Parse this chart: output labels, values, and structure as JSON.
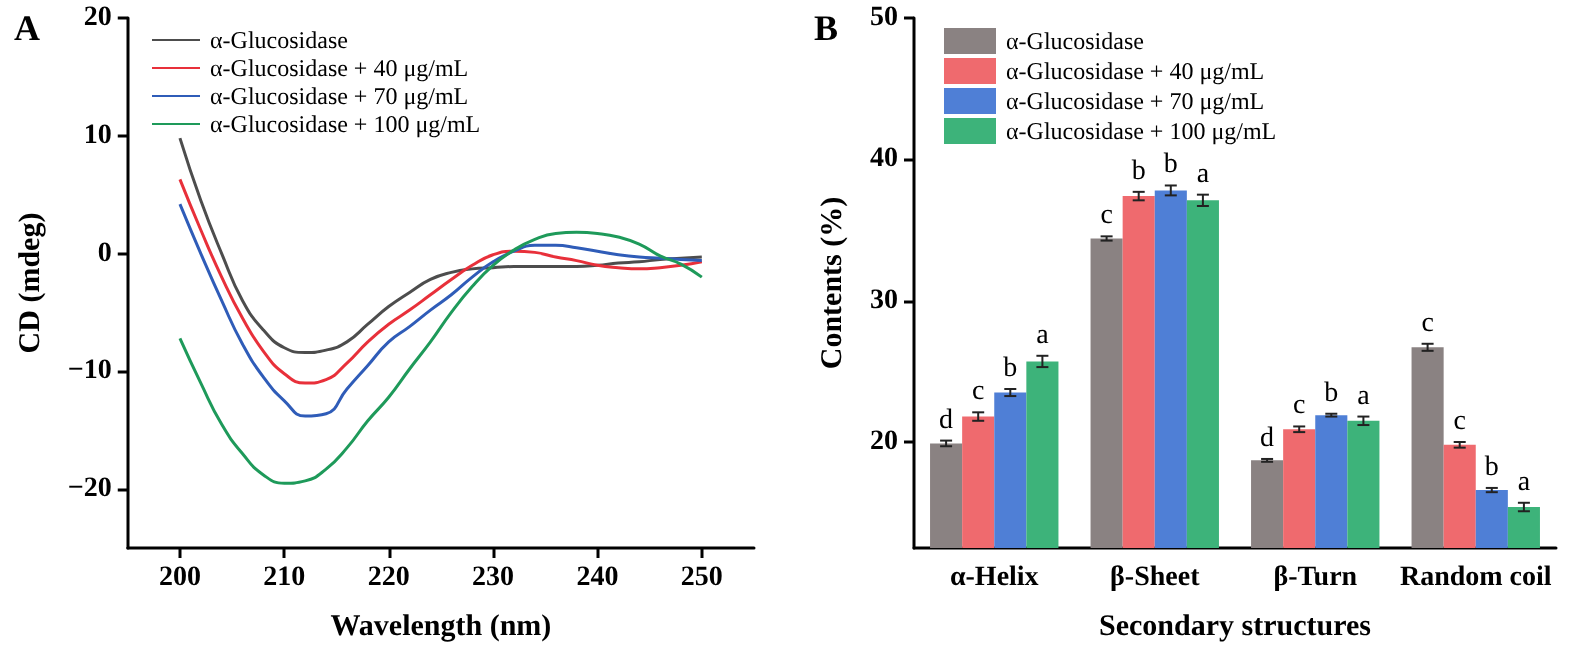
{
  "chart_data": [
    {
      "type": "line",
      "title": "A",
      "xlabel": "Wavelength (nm)",
      "ylabel": "CD (mdeg)",
      "xlim": [
        195,
        255
      ],
      "xticks": [
        200,
        210,
        220,
        230,
        240,
        250
      ],
      "ylim": [
        -25,
        20
      ],
      "yticks": [
        -20,
        -10,
        0,
        10,
        20
      ],
      "grid": false,
      "legend": "top left",
      "marker": "none",
      "line_style": "solid",
      "x": [
        200,
        202,
        204,
        206,
        208,
        210,
        212,
        214,
        216,
        218,
        220,
        222,
        224,
        226,
        228,
        230,
        232,
        234,
        236,
        238,
        240,
        242,
        244,
        246,
        248,
        250
      ],
      "series": [
        {
          "name": "α-Glucosidase",
          "color": "#4d4d4d",
          "values": [
            9.8,
            4.5,
            0,
            -4,
            -6.5,
            -8,
            -8.4,
            -8.2,
            -7.5,
            -6,
            -4.5,
            -3.3,
            -2.2,
            -1.6,
            -1.3,
            -1.2,
            -1.1,
            -1.1,
            -1.1,
            -1.1,
            -1,
            -0.8,
            -0.7,
            -0.5,
            -0.4,
            -0.3
          ]
        },
        {
          "name": "α-Glucosidase + 40 μg/mL",
          "color": "#e8303a",
          "values": [
            6.3,
            2,
            -2,
            -5.5,
            -8.3,
            -10.2,
            -11,
            -10.7,
            -9.3,
            -7.5,
            -6,
            -4.8,
            -3.5,
            -2.2,
            -1,
            -0.1,
            0.2,
            0.1,
            -0.3,
            -0.6,
            -1,
            -1.2,
            -1.3,
            -1.2,
            -1,
            -0.7
          ]
        },
        {
          "name": "α-Glucosidase + 70 μg/mL",
          "color": "#2f5cb8",
          "values": [
            4.2,
            0,
            -4,
            -7.7,
            -10.5,
            -12.5,
            -13.8,
            -13.6,
            -11.5,
            -9.5,
            -7.5,
            -6.2,
            -4.8,
            -3.5,
            -2,
            -0.7,
            0.2,
            0.7,
            0.7,
            0.5,
            0.2,
            -0.1,
            -0.3,
            -0.4,
            -0.5,
            -0.6
          ]
        },
        {
          "name": "α-Glucosidase + 100 μg/mL",
          "color": "#1e9a5a",
          "values": [
            -7.2,
            -11,
            -14.5,
            -17,
            -18.8,
            -19.5,
            -19.3,
            -18.3,
            -16.5,
            -14.2,
            -12.2,
            -9.8,
            -7.5,
            -5,
            -2.8,
            -1,
            0.3,
            1.2,
            1.7,
            1.8,
            1.7,
            1.4,
            0.8,
            -0.2,
            -0.9,
            -2
          ]
        }
      ]
    },
    {
      "type": "bar",
      "title": "B",
      "xlabel": "Secondary structures",
      "ylabel": "Contents (%)",
      "ylim": [
        12.5,
        50
      ],
      "yticks": [
        20,
        30,
        40,
        50
      ],
      "grid": false,
      "legend": "top left",
      "categories": [
        "α-Helix",
        "β-Sheet",
        "β-Turn",
        "Random coil"
      ],
      "series": [
        {
          "name": "α-Glucosidase",
          "color": "#8a8282",
          "values": [
            19.9,
            34.4,
            18.7,
            26.7
          ],
          "errors": [
            0.2,
            0.15,
            0.1,
            0.25
          ],
          "value_labels": [
            "d",
            "c",
            "d",
            "c"
          ]
        },
        {
          "name": "α-Glucosidase + 40 μg/mL",
          "color": "#ef6a6e",
          "values": [
            21.8,
            37.4,
            20.9,
            19.8
          ],
          "errors": [
            0.3,
            0.3,
            0.2,
            0.2
          ],
          "value_labels": [
            "c",
            "b",
            "c",
            "c"
          ]
        },
        {
          "name": "α-Glucosidase + 70 μg/mL",
          "color": "#4f7fd6",
          "values": [
            23.5,
            37.8,
            21.9,
            16.6
          ],
          "errors": [
            0.25,
            0.35,
            0.1,
            0.15
          ],
          "value_labels": [
            "b",
            "b",
            "b",
            "b"
          ]
        },
        {
          "name": "α-Glucosidase + 100 μg/mL",
          "color": "#3db37a",
          "values": [
            25.7,
            37.1,
            21.5,
            15.4
          ],
          "errors": [
            0.4,
            0.4,
            0.3,
            0.3
          ],
          "value_labels": [
            "a",
            "a",
            "a",
            "a"
          ]
        }
      ]
    }
  ]
}
